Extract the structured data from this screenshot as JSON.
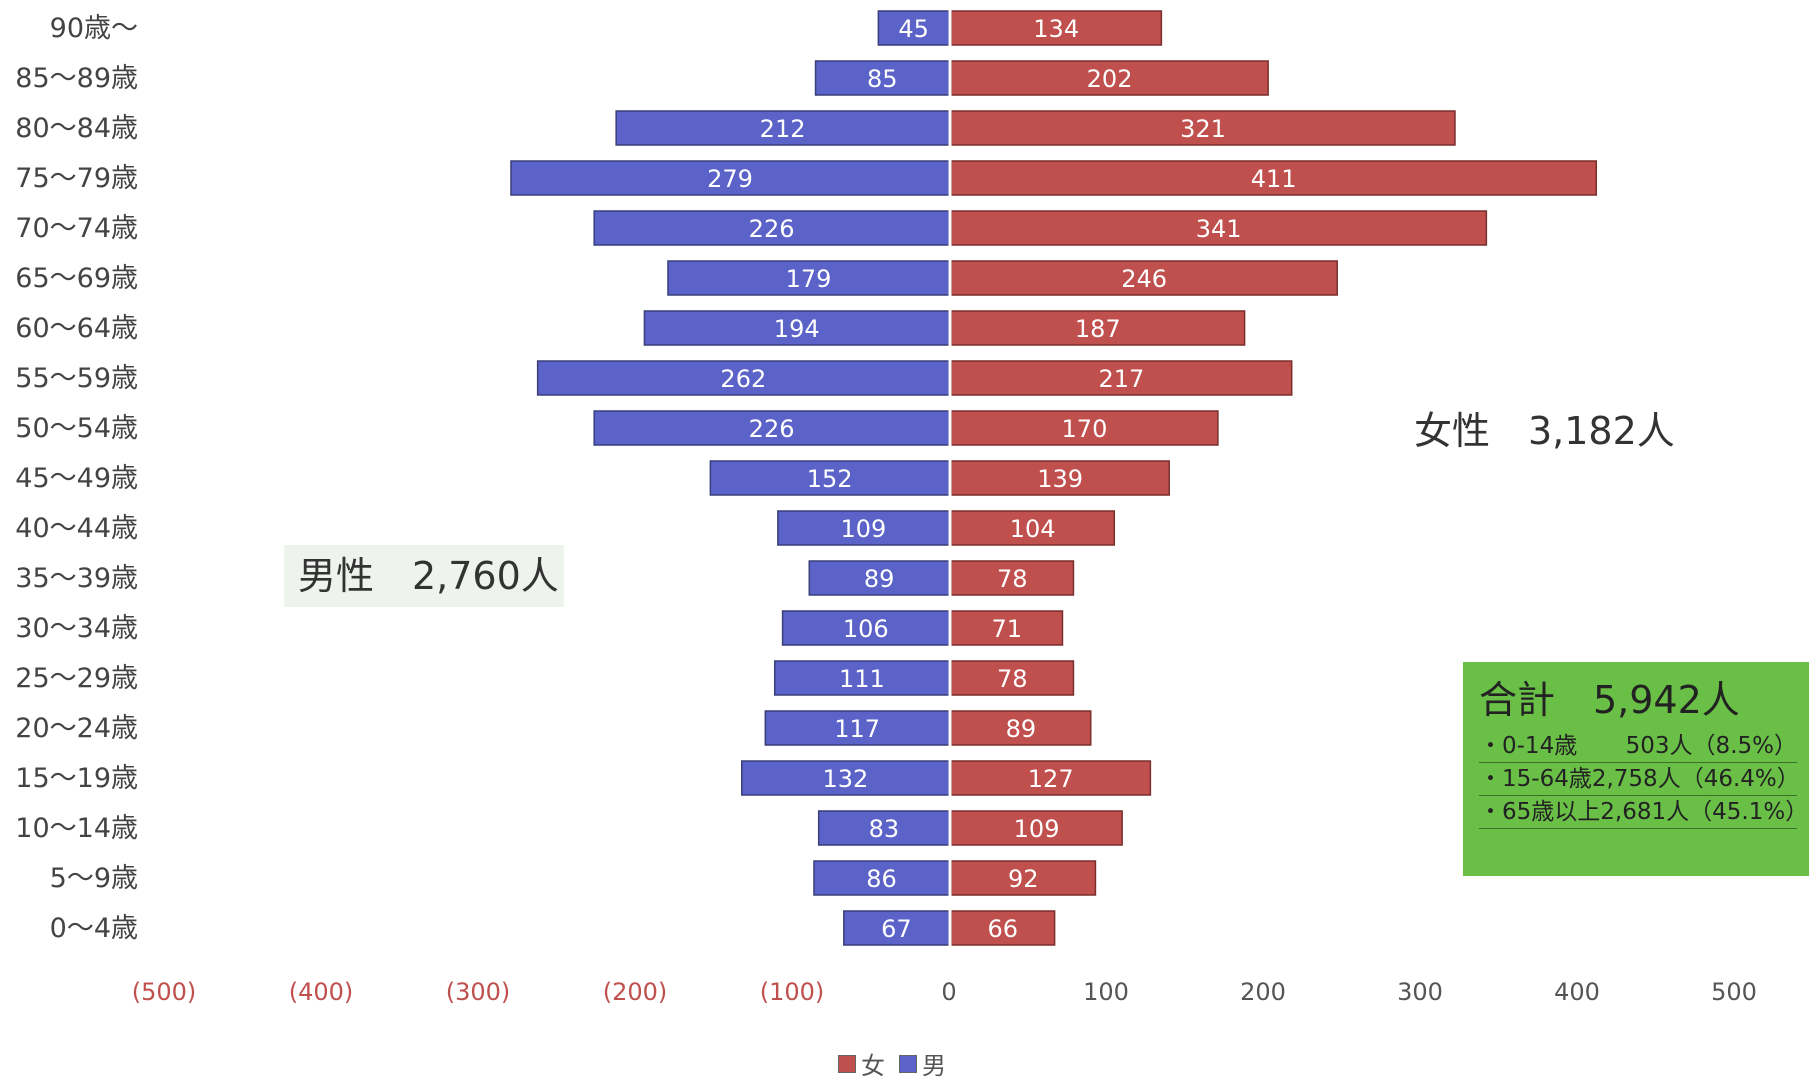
{
  "chart_data": {
    "type": "bar",
    "orientation": "horizontal-population-pyramid",
    "categories": [
      "90歳〜",
      "85〜89歳",
      "80〜84歳",
      "75〜79歳",
      "70〜74歳",
      "65〜69歳",
      "60〜64歳",
      "55〜59歳",
      "50〜54歳",
      "45〜49歳",
      "40〜44歳",
      "35〜39歳",
      "30〜34歳",
      "25〜29歳",
      "20〜24歳",
      "15〜19歳",
      "10〜14歳",
      "5〜9歳",
      "0〜4歳"
    ],
    "series": [
      {
        "name": "男",
        "color": "#5b63c8",
        "values": [
          45,
          85,
          212,
          279,
          226,
          179,
          194,
          262,
          226,
          152,
          109,
          89,
          106,
          111,
          117,
          132,
          83,
          86,
          67
        ]
      },
      {
        "name": "女",
        "color": "#c0504d",
        "values": [
          134,
          202,
          321,
          411,
          341,
          246,
          187,
          217,
          170,
          139,
          104,
          78,
          71,
          78,
          89,
          127,
          109,
          92,
          66
        ]
      }
    ],
    "xlim": [
      -500,
      500
    ],
    "x_tick_labels": [
      "(500)",
      "(400)",
      "(300)",
      "(200)",
      "(100)",
      "0",
      "100",
      "200",
      "300",
      "400",
      "500"
    ],
    "legend_position": "bottom",
    "grid": false
  },
  "annotations": {
    "male_total": "男性　2,760人",
    "female_total": "女性　3,182人",
    "grand_total": "合計　5,942人",
    "breakdown": [
      {
        "label": "・0-14歳",
        "value": "503人（8.5%）"
      },
      {
        "label": "・15-64歳",
        "value": "2,758人（46.4%）"
      },
      {
        "label": "・65歳以上",
        "value": "2,681人（45.1%）"
      }
    ]
  },
  "legend": {
    "female": "女",
    "male": "男"
  }
}
